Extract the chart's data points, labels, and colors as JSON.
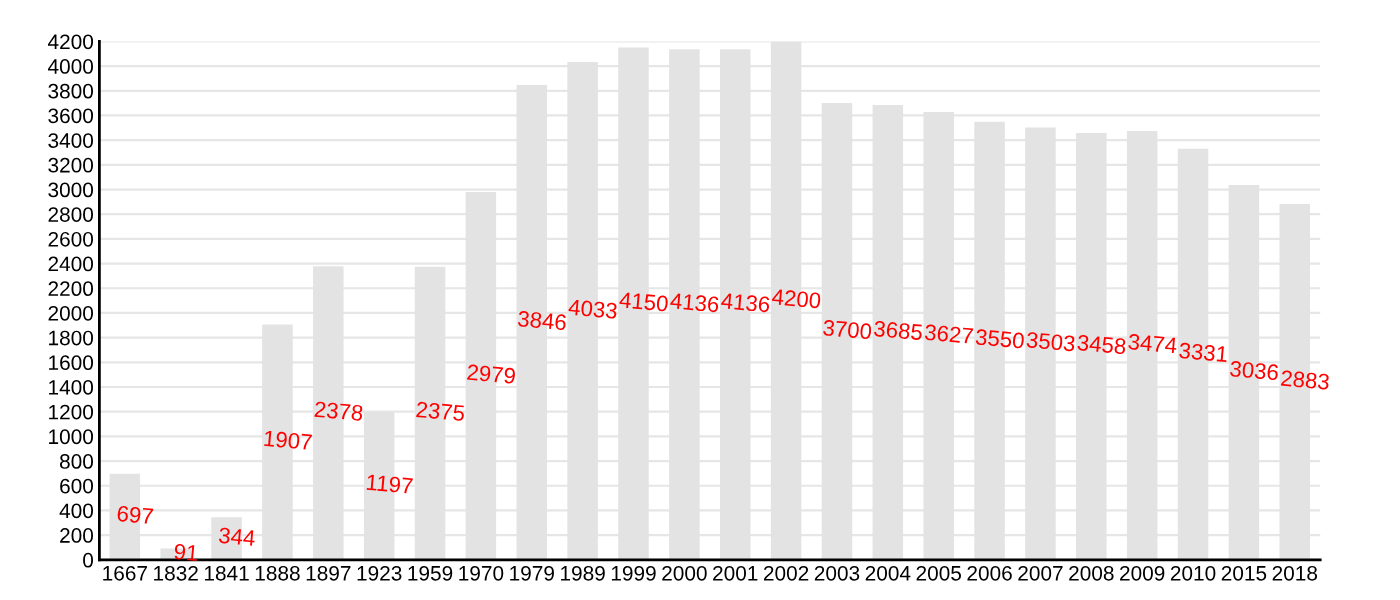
{
  "chart_data": {
    "type": "bar",
    "categories": [
      "1667",
      "1832",
      "1841",
      "1888",
      "1897",
      "1923",
      "1959",
      "1970",
      "1979",
      "1989",
      "1999",
      "2000",
      "2001",
      "2002",
      "2003",
      "2004",
      "2005",
      "2006",
      "2007",
      "2008",
      "2009",
      "2010",
      "2015",
      "2018"
    ],
    "values": [
      697,
      91,
      344,
      1907,
      2378,
      1197,
      2375,
      2979,
      3846,
      4033,
      4150,
      4136,
      4136,
      4200,
      3700,
      3685,
      3627,
      3550,
      3503,
      3458,
      3474,
      3331,
      3036,
      2883
    ],
    "data_labels": true,
    "color": "#e3e3e3",
    "ylim": [
      0,
      4200
    ],
    "yticks": [
      0,
      200,
      400,
      600,
      800,
      1000,
      1200,
      1400,
      1600,
      1800,
      2000,
      2200,
      2400,
      2600,
      2800,
      3000,
      3200,
      3400,
      3600,
      3800,
      4000,
      4200
    ],
    "grid": "y"
  }
}
